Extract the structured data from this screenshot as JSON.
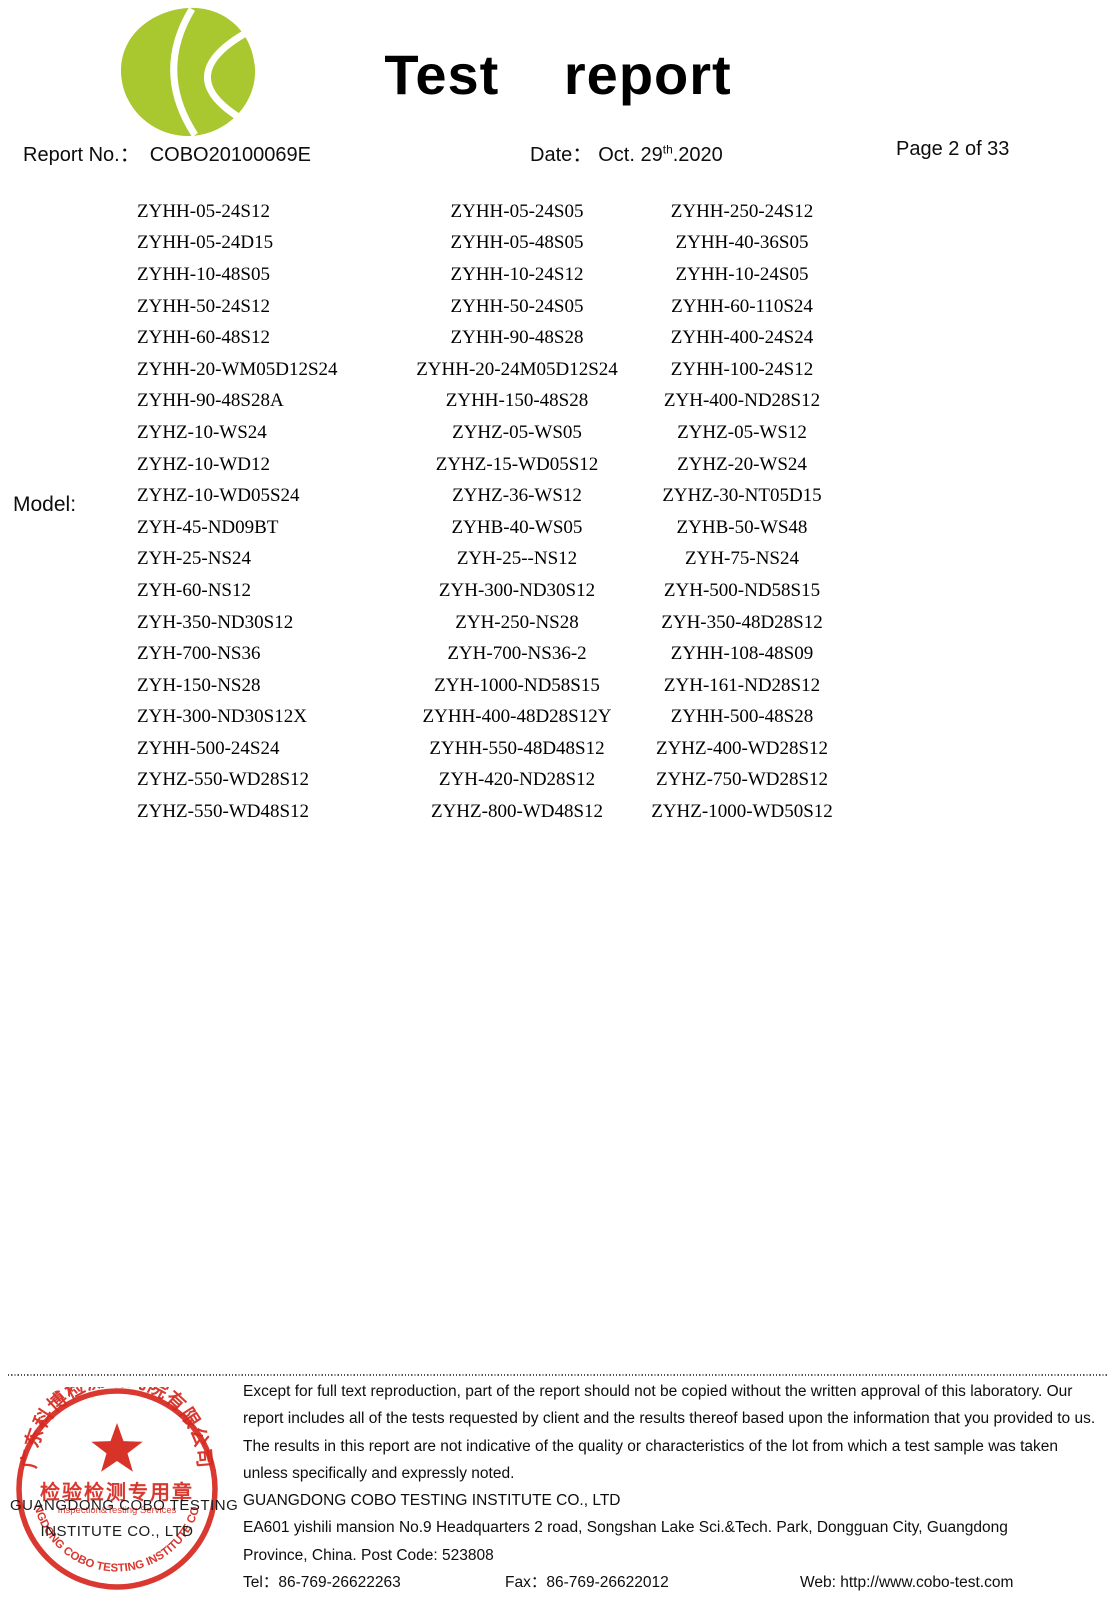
{
  "header": {
    "title": "Test report",
    "report_no_label": "Report No.：",
    "report_no_value": "COBO20100069E",
    "date_label": "Date：",
    "date_main": "Oct. 29",
    "date_superscript": "th",
    "date_tail": ".2020",
    "page_label": "Page 2 of 33",
    "logo_color": "#a9c72f"
  },
  "model_section": {
    "label": "Model:",
    "rows": [
      [
        "ZYHH-05-24S12",
        "ZYHH-05-24S05",
        "ZYHH-250-24S12"
      ],
      [
        "ZYHH-05-24D15",
        "ZYHH-05-48S05",
        "ZYHH-40-36S05"
      ],
      [
        "ZYHH-10-48S05",
        "ZYHH-10-24S12",
        "ZYHH-10-24S05"
      ],
      [
        "ZYHH-50-24S12",
        "ZYHH-50-24S05",
        "ZYHH-60-110S24"
      ],
      [
        "ZYHH-60-48S12",
        "ZYHH-90-48S28",
        "ZYHH-400-24S24"
      ],
      [
        "ZYHH-20-WM05D12S24",
        "ZYHH-20-24M05D12S24",
        "ZYHH-100-24S12"
      ],
      [
        "ZYHH-90-48S28A",
        "ZYHH-150-48S28",
        "ZYH-400-ND28S12"
      ],
      [
        "ZYHZ-10-WS24",
        "ZYHZ-05-WS05",
        "ZYHZ-05-WS12"
      ],
      [
        "ZYHZ-10-WD12",
        "ZYHZ-15-WD05S12",
        "ZYHZ-20-WS24"
      ],
      [
        "ZYHZ-10-WD05S24",
        "ZYHZ-36-WS12",
        "ZYHZ-30-NT05D15"
      ],
      [
        "ZYH-45-ND09BT",
        "ZYHB-40-WS05",
        "ZYHB-50-WS48"
      ],
      [
        "ZYH-25-NS24",
        "ZYH-25--NS12",
        "ZYH-75-NS24"
      ],
      [
        "ZYH-60-NS12",
        "ZYH-300-ND30S12",
        "ZYH-500-ND58S15"
      ],
      [
        "ZYH-350-ND30S12",
        "ZYH-250-NS28",
        "ZYH-350-48D28S12"
      ],
      [
        "ZYH-700-NS36",
        "ZYH-700-NS36-2",
        "ZYHH-108-48S09"
      ],
      [
        "ZYH-150-NS28",
        "ZYH-1000-ND58S15",
        "ZYH-161-ND28S12"
      ],
      [
        "ZYH-300-ND30S12X",
        "ZYHH-400-48D28S12Y",
        "ZYHH-500-48S28"
      ],
      [
        "ZYHH-500-24S24",
        "ZYHH-550-48D48S12",
        "ZYHZ-400-WD28S12"
      ],
      [
        "ZYHZ-550-WD28S12",
        "ZYH-420-ND28S12",
        "ZYHZ-750-WD28S12"
      ],
      [
        "ZYHZ-550-WD48S12",
        "ZYHZ-800-WD48S12",
        "ZYHZ-1000-WD50S12"
      ]
    ]
  },
  "footer": {
    "disclaimer_lines": [
      "Except for full text reproduction, part of the report should not be copied without the written approval of this laboratory. Our",
      "report includes all of the tests requested by client and the results thereof based upon the information that you provided to us.",
      "The results in this report are not indicative of the quality or characteristics of the lot from which a test sample was taken",
      "unless specifically and expressly noted."
    ],
    "company_name": "GUANGDONG COBO TESTING INSTITUTE CO., LTD",
    "address_line1": "EA601 yishili mansion No.9 Headquarters 2 road, Songshan Lake Sci.&Tech. Park, Dongguan City, Guangdong",
    "address_line2": "Province, China. Post Code: 523808",
    "tel_label": "Tel：",
    "tel_value": "86-769-26622263",
    "fax_label": "Fax：",
    "fax_value": "86-769-26622012",
    "web_label": "Web:",
    "web_value": "http://www.cobo-test.com"
  },
  "stamp": {
    "color": "#d6281e",
    "top_arc_text": "广东科博检测研究院有限公司",
    "seal_line": "检验检测专用章",
    "seal_subline": "Inspection&Testing Services",
    "bottom_arc_text": "GUANGDONG COBO TESTING INSTITUTE CO.,LTD",
    "overlay_line1": "GUANGDONG COBO TESTING",
    "overlay_line2": "INSTITUTE CO., LTD"
  }
}
